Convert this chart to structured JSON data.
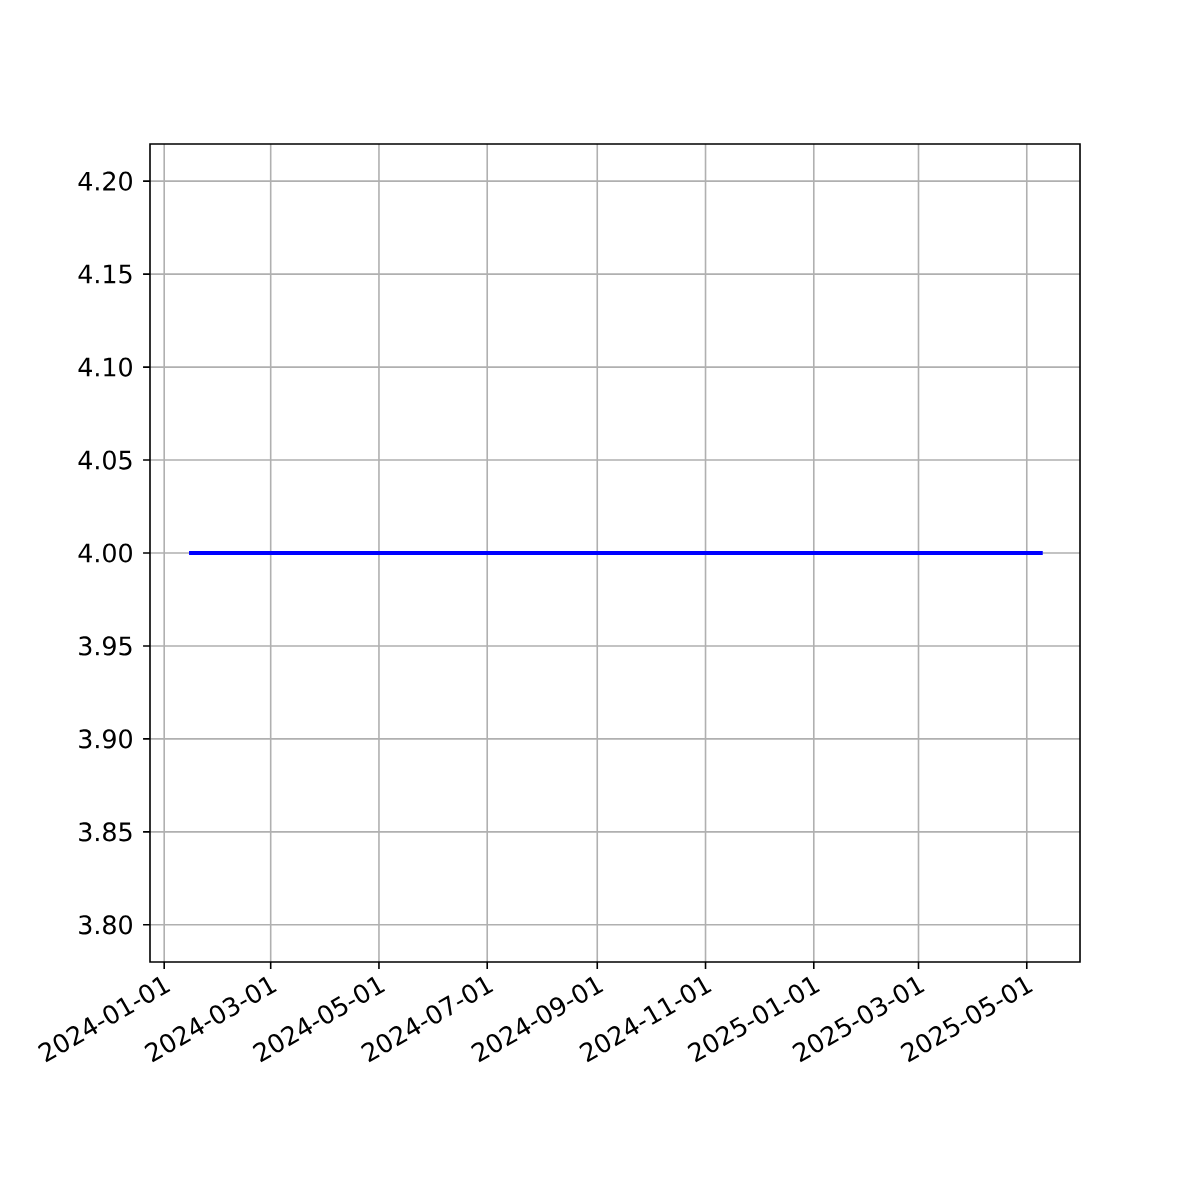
{
  "chart_data": {
    "type": "line",
    "x": [
      "2024-01-15",
      "2025-05-10"
    ],
    "series": [
      {
        "color": "#0000ff",
        "values": [
          4.0,
          4.0
        ]
      }
    ],
    "xlim": [
      "2023-12-24",
      "2025-05-31"
    ],
    "xticks": [
      "2024-01-01",
      "2024-03-01",
      "2024-05-01",
      "2024-07-01",
      "2024-09-01",
      "2024-11-01",
      "2025-01-01",
      "2025-03-01",
      "2025-05-01"
    ],
    "ylim": [
      3.78,
      4.22
    ],
    "yticks": [
      {
        "value": 3.8,
        "label": "3.80"
      },
      {
        "value": 3.85,
        "label": "3.85"
      },
      {
        "value": 3.9,
        "label": "3.90"
      },
      {
        "value": 3.95,
        "label": "3.95"
      },
      {
        "value": 4.0,
        "label": "4.00"
      },
      {
        "value": 4.05,
        "label": "4.05"
      },
      {
        "value": 4.1,
        "label": "4.10"
      },
      {
        "value": 4.15,
        "label": "4.15"
      },
      {
        "value": 4.2,
        "label": "4.20"
      }
    ],
    "grid": true,
    "line_style": "solid"
  }
}
